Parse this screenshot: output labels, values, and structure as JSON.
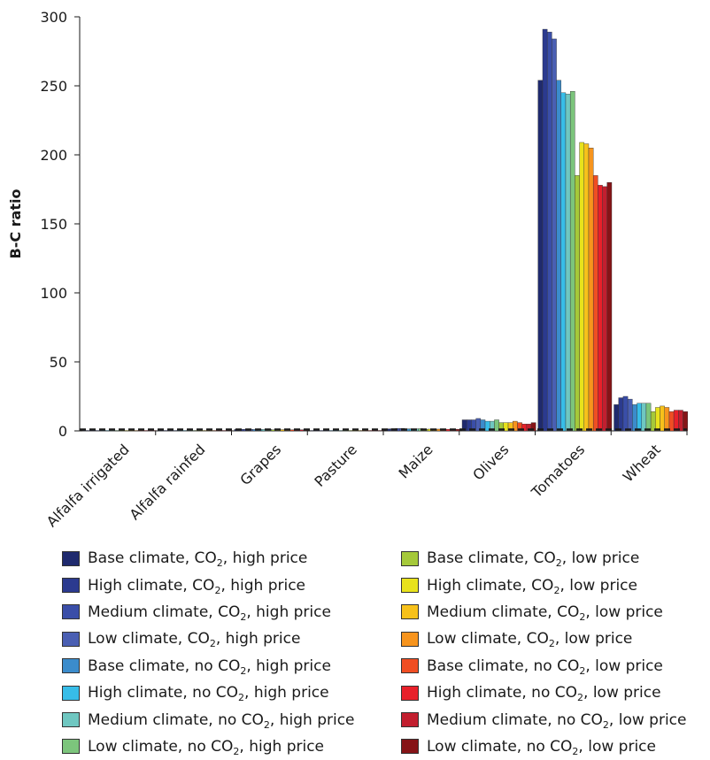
{
  "chart_data": {
    "type": "bar",
    "ylabel": "B-C ratio",
    "xlabel": "",
    "ylim": [
      0,
      300
    ],
    "yticks": [
      0,
      50,
      100,
      150,
      200,
      250,
      300
    ],
    "reference_line": {
      "value": 1,
      "style": "dashed"
    },
    "categories": [
      "Alfalfa irrigated",
      "Alfalfa rainfed",
      "Grapes",
      "Pasture",
      "Maize",
      "Olives",
      "Tomatoes",
      "Wheat"
    ],
    "series": [
      {
        "name": "Base climate, CO₂, high price",
        "label_prefix": "Base climate, CO",
        "label_suffix": ", high price",
        "color": "#1f2a6e",
        "values": [
          0.3,
          0.3,
          1.0,
          0.3,
          1.5,
          8,
          254,
          19
        ]
      },
      {
        "name": "High climate, CO₂, high price",
        "label_prefix": "High climate, CO",
        "label_suffix": ", high price",
        "color": "#2b3a8f",
        "values": [
          0.3,
          0.3,
          1.1,
          0.3,
          1.6,
          8,
          291,
          24
        ]
      },
      {
        "name": "Medium climate, CO₂, high price",
        "label_prefix": "Medium climate, CO",
        "label_suffix": ", high price",
        "color": "#3a4ea8",
        "values": [
          0.3,
          0.3,
          1.1,
          0.3,
          1.7,
          8,
          289,
          25
        ]
      },
      {
        "name": "Low climate, CO₂, high price",
        "label_prefix": "Low climate, CO",
        "label_suffix": ", high price",
        "color": "#4a5fb3",
        "values": [
          0.3,
          0.3,
          1.2,
          0.3,
          1.8,
          9,
          284,
          23
        ]
      },
      {
        "name": "Base climate, no CO₂, high price",
        "label_prefix": "Base climate, no CO",
        "label_suffix": ", high price",
        "color": "#3b8ccc",
        "values": [
          0.3,
          0.3,
          1.0,
          0.3,
          1.5,
          8,
          254,
          19
        ]
      },
      {
        "name": "High climate, no CO₂, high price",
        "label_prefix": "High climate, no CO",
        "label_suffix": ", high price",
        "color": "#37bde8",
        "values": [
          0.3,
          0.3,
          1.0,
          0.3,
          1.5,
          7,
          245,
          20
        ]
      },
      {
        "name": "Medium climate, no CO₂, high price",
        "label_prefix": "Medium climate, no CO",
        "label_suffix": ", high price",
        "color": "#6fc7c1",
        "values": [
          0.3,
          0.3,
          1.0,
          0.3,
          1.5,
          7,
          244,
          20
        ]
      },
      {
        "name": "Low climate, no CO₂, high price",
        "label_prefix": "Low climate, no CO",
        "label_suffix": ", high price",
        "color": "#7cc57c",
        "values": [
          0.3,
          0.3,
          1.1,
          0.3,
          1.6,
          8,
          246,
          20
        ]
      },
      {
        "name": "Base climate, CO₂, low price",
        "label_prefix": "Base climate, CO",
        "label_suffix": ", low price",
        "color": "#a5c93a",
        "values": [
          0.3,
          0.3,
          0.8,
          0.3,
          1.2,
          6,
          185,
          14
        ]
      },
      {
        "name": "High climate, CO₂, low price",
        "label_prefix": "High climate, CO",
        "label_suffix": ", low price",
        "color": "#e8e21c",
        "values": [
          0.3,
          0.3,
          0.9,
          0.3,
          1.3,
          6,
          209,
          17
        ]
      },
      {
        "name": "Medium climate, CO₂, low price",
        "label_prefix": "Medium climate, CO",
        "label_suffix": ", low price",
        "color": "#f7c11a",
        "values": [
          0.3,
          0.3,
          0.9,
          0.3,
          1.3,
          6,
          208,
          18
        ]
      },
      {
        "name": "Low climate, CO₂, low price",
        "label_prefix": "Low climate, CO",
        "label_suffix": ", low price",
        "color": "#f7941d",
        "values": [
          0.3,
          0.3,
          0.9,
          0.3,
          1.3,
          7,
          205,
          17
        ]
      },
      {
        "name": "Base climate, no CO₂, low price",
        "label_prefix": "Base climate, no CO",
        "label_suffix": ", low price",
        "color": "#f04e23",
        "values": [
          0.3,
          0.3,
          0.8,
          0.3,
          1.2,
          6,
          185,
          14
        ]
      },
      {
        "name": "High climate, no CO₂, low price",
        "label_prefix": "High climate, no CO",
        "label_suffix": ", low price",
        "color": "#e8202a",
        "values": [
          0.3,
          0.3,
          0.8,
          0.3,
          1.2,
          5,
          178,
          15
        ]
      },
      {
        "name": "Medium climate, no CO₂, low price",
        "label_prefix": "Medium climate, no CO",
        "label_suffix": ", low price",
        "color": "#c21f2f",
        "values": [
          0.3,
          0.3,
          0.8,
          0.3,
          1.2,
          5,
          177,
          15
        ]
      },
      {
        "name": "Low climate, no CO₂, low price",
        "label_prefix": "Low climate, no CO",
        "label_suffix": ", low price",
        "color": "#861417",
        "values": [
          0.3,
          0.3,
          0.8,
          0.3,
          1.2,
          6,
          180,
          14
        ]
      }
    ],
    "legend_position": "bottom",
    "grid": false
  },
  "legend": {
    "subscript": "2"
  }
}
